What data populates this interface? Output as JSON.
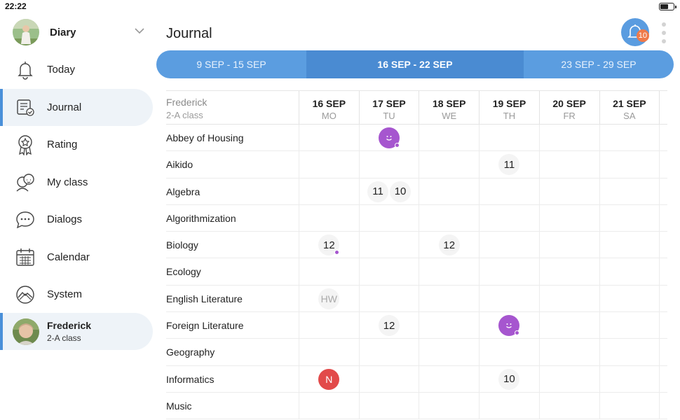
{
  "status_bar": {
    "time": "22:22",
    "battery_level": 0.6
  },
  "sidebar": {
    "diary_title": "Diary",
    "nav": [
      {
        "label": "Today",
        "icon": "bell-icon",
        "active": false
      },
      {
        "label": "Journal",
        "icon": "journal-icon",
        "active": true
      },
      {
        "label": "Rating",
        "icon": "rating-badge-icon",
        "active": false
      },
      {
        "label": "My class",
        "icon": "classmates-icon",
        "active": false
      },
      {
        "label": "Dialogs",
        "icon": "chat-bubble-icon",
        "active": false
      },
      {
        "label": "Calendar",
        "icon": "calendar-icon",
        "active": false
      },
      {
        "label": "System",
        "icon": "system-icon",
        "active": false
      }
    ],
    "user": {
      "name": "Frederick",
      "class": "2-A class"
    }
  },
  "header": {
    "title": "Journal",
    "notification_count": "10"
  },
  "weeks": [
    {
      "label": "9 SEP - 15 SEP",
      "active": false
    },
    {
      "label": "16 SEP - 22 SEP",
      "active": true
    },
    {
      "label": "23 SEP - 29 SEP",
      "active": false
    }
  ],
  "journal": {
    "student_name": "Frederick",
    "student_class": "2-A class",
    "days": [
      {
        "date": "16 SEP",
        "dow": "MO"
      },
      {
        "date": "17 SEP",
        "dow": "TU"
      },
      {
        "date": "18 SEP",
        "dow": "WE"
      },
      {
        "date": "19 SEP",
        "dow": "TH"
      },
      {
        "date": "20 SEP",
        "dow": "FR"
      },
      {
        "date": "21 SEP",
        "dow": "SA"
      }
    ],
    "subjects": [
      {
        "name": "Abbey of Housing",
        "marks": [
          [],
          [
            {
              "type": "smile",
              "dot": true
            }
          ],
          [],
          [],
          [],
          []
        ]
      },
      {
        "name": "Aikido",
        "marks": [
          [],
          [],
          [],
          [
            {
              "type": "grade",
              "value": "11"
            }
          ],
          [],
          []
        ]
      },
      {
        "name": "Algebra",
        "marks": [
          [],
          [
            {
              "type": "grade",
              "value": "11"
            },
            {
              "type": "grade",
              "value": "10"
            }
          ],
          [],
          [],
          [],
          []
        ]
      },
      {
        "name": "Algorithmization",
        "marks": [
          [],
          [],
          [],
          [],
          [],
          []
        ]
      },
      {
        "name": "Biology",
        "marks": [
          [
            {
              "type": "grade",
              "value": "12",
              "dot": true
            }
          ],
          [],
          [
            {
              "type": "grade",
              "value": "12"
            }
          ],
          [],
          [],
          []
        ]
      },
      {
        "name": "Ecology",
        "marks": [
          [],
          [],
          [],
          [],
          [],
          []
        ]
      },
      {
        "name": "English Literature",
        "marks": [
          [
            {
              "type": "hw",
              "value": "HW"
            }
          ],
          [],
          [],
          [],
          [],
          []
        ]
      },
      {
        "name": "Foreign Literature",
        "marks": [
          [],
          [
            {
              "type": "grade",
              "value": "12"
            }
          ],
          [],
          [
            {
              "type": "smile",
              "dot": true
            }
          ],
          [],
          []
        ]
      },
      {
        "name": "Geography",
        "marks": [
          [],
          [],
          [],
          [],
          [],
          []
        ]
      },
      {
        "name": "Informatics",
        "marks": [
          [
            {
              "type": "absent",
              "value": "N"
            }
          ],
          [],
          [],
          [
            {
              "type": "grade",
              "value": "10"
            }
          ],
          [],
          []
        ]
      },
      {
        "name": "Music",
        "marks": [
          [],
          [],
          [],
          [],
          [],
          []
        ]
      }
    ]
  },
  "colors": {
    "accent": "#4a90d9",
    "week_bar": "#5b9de0",
    "week_active": "#4a8bd2",
    "smile": "#a656cf",
    "absent": "#e24a4a",
    "badge": "#ef7a4a"
  }
}
